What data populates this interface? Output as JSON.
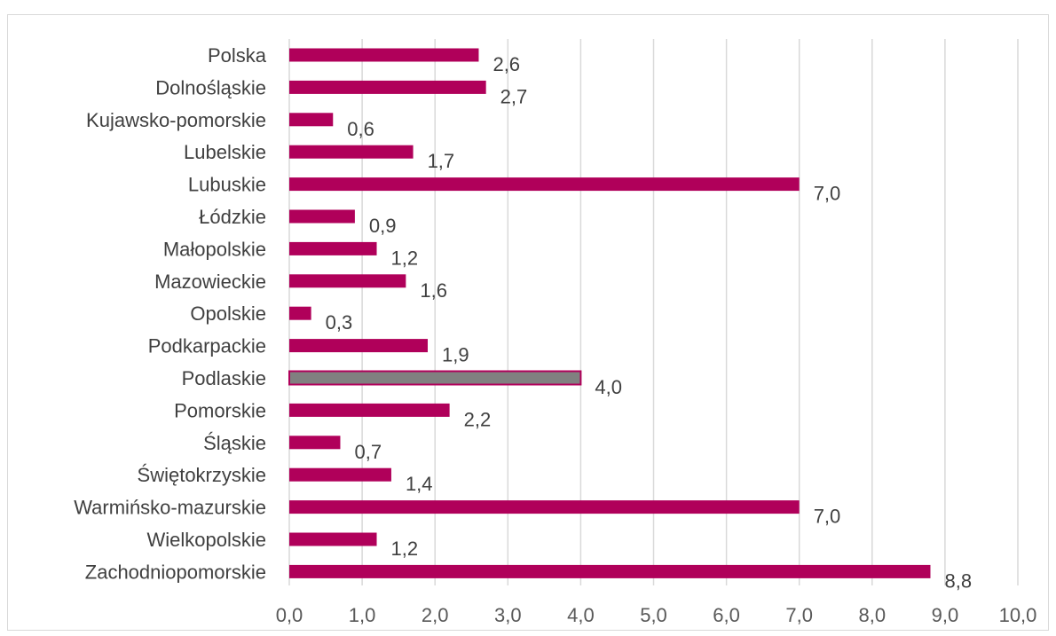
{
  "chart_data": {
    "type": "bar",
    "orientation": "horizontal",
    "categories": [
      "Polska",
      "Dolnośląskie",
      "Kujawsko-pomorskie",
      "Lubelskie",
      "Lubuskie",
      "Łódzkie",
      "Małopolskie",
      "Mazowieckie",
      "Opolskie",
      "Podkarpackie",
      "Podlaskie",
      "Pomorskie",
      "Śląskie",
      "Świętokrzyskie",
      "Warmińsko-mazurskie",
      "Wielkopolskie",
      "Zachodniopomorskie"
    ],
    "values": [
      2.6,
      2.7,
      0.6,
      1.7,
      7.0,
      0.9,
      1.2,
      1.6,
      0.3,
      1.9,
      4.0,
      2.2,
      0.7,
      1.4,
      7.0,
      1.2,
      8.8
    ],
    "value_labels": [
      "2,6",
      "2,7",
      "0,6",
      "1,7",
      "7,0",
      "0,9",
      "1,2",
      "1,6",
      "0,3",
      "1,9",
      "4,0",
      "2,2",
      "0,7",
      "1,4",
      "7,0",
      "1,2",
      "8,8"
    ],
    "highlighted_category": "Podlaskie",
    "xlim": [
      0,
      10
    ],
    "x_ticks": [
      "0,0",
      "1,0",
      "2,0",
      "3,0",
      "4,0",
      "5,0",
      "6,0",
      "7,0",
      "8,0",
      "9,0",
      "10,0"
    ],
    "grid": true,
    "legend": "none",
    "colors": {
      "bar": "#b0005a",
      "highlight_bar": "#808080",
      "highlight_border": "#b0005a"
    }
  }
}
